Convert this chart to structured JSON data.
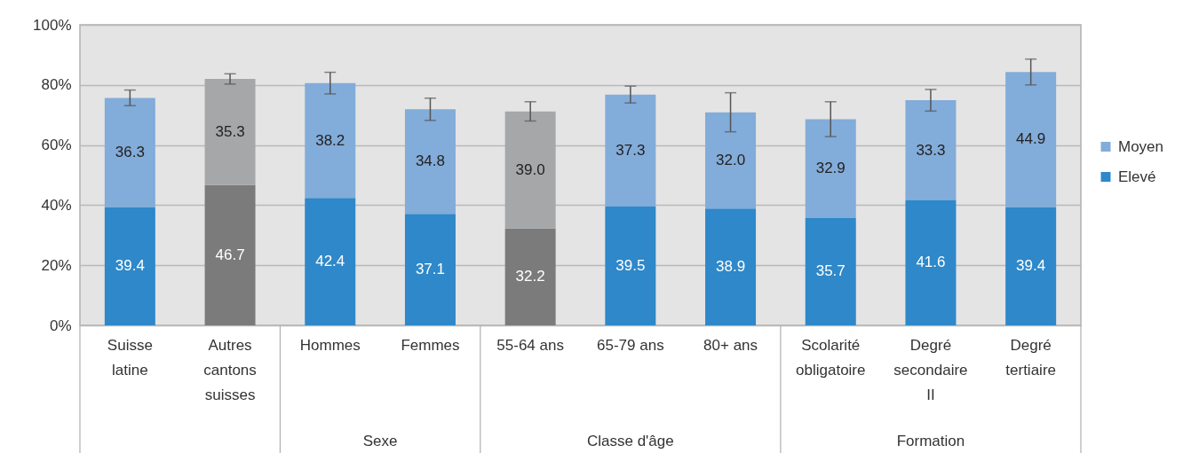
{
  "chart_data": {
    "type": "bar",
    "stacked": true,
    "categories": [
      "Suisse latine",
      "Autres cantons suisses",
      "Hommes",
      "Femmes",
      "55-64 ans",
      "65-79 ans",
      "80+ ans",
      "Scolarité obligatoire",
      "Degré secondaire II",
      "Degré tertiaire"
    ],
    "series": [
      {
        "name": "Elevé",
        "color": "#2e88c9",
        "colors": [
          "#2e88c9",
          "#7b7b7b",
          "#2e88c9",
          "#2e88c9",
          "#7b7b7b",
          "#2e88c9",
          "#2e88c9",
          "#2e88c9",
          "#2e88c9",
          "#2e88c9"
        ],
        "values": [
          39.4,
          46.7,
          42.4,
          37.1,
          32.2,
          39.5,
          38.9,
          35.7,
          41.6,
          39.4
        ],
        "value_labels": [
          "39.4",
          "46.7",
          "42.4",
          "37.1",
          "32.2",
          "39.5",
          "38.9",
          "35.7",
          "41.6",
          "39.4"
        ]
      },
      {
        "name": "Moyen",
        "color": "#82acd9",
        "colors": [
          "#82acd9",
          "#a6a7a9",
          "#82acd9",
          "#82acd9",
          "#a6a7a9",
          "#82acd9",
          "#82acd9",
          "#82acd9",
          "#82acd9",
          "#82acd9"
        ],
        "values": [
          36.3,
          35.3,
          38.2,
          34.8,
          39.0,
          37.3,
          32.0,
          32.9,
          33.3,
          44.9
        ],
        "errors": [
          2.6,
          1.7,
          3.6,
          3.7,
          3.2,
          2.8,
          6.5,
          5.8,
          3.6,
          4.3
        ],
        "value_labels": [
          "36.3",
          "35.3",
          "38.2",
          "34.8",
          "39.0",
          "37.3",
          "32.0",
          "32.9",
          "33.3",
          "44.9"
        ]
      }
    ],
    "ylim": [
      0,
      100
    ],
    "yticks": [
      {
        "value": 0,
        "label": "0%"
      },
      {
        "value": 20,
        "label": "20%"
      },
      {
        "value": 40,
        "label": "40%"
      },
      {
        "value": 60,
        "label": "60%"
      },
      {
        "value": 80,
        "label": "80%"
      },
      {
        "value": 100,
        "label": "100%"
      }
    ],
    "grid": "y",
    "legend": "right",
    "annotations": [
      "Sexe",
      "Classe d'âge",
      "Formation"
    ]
  }
}
